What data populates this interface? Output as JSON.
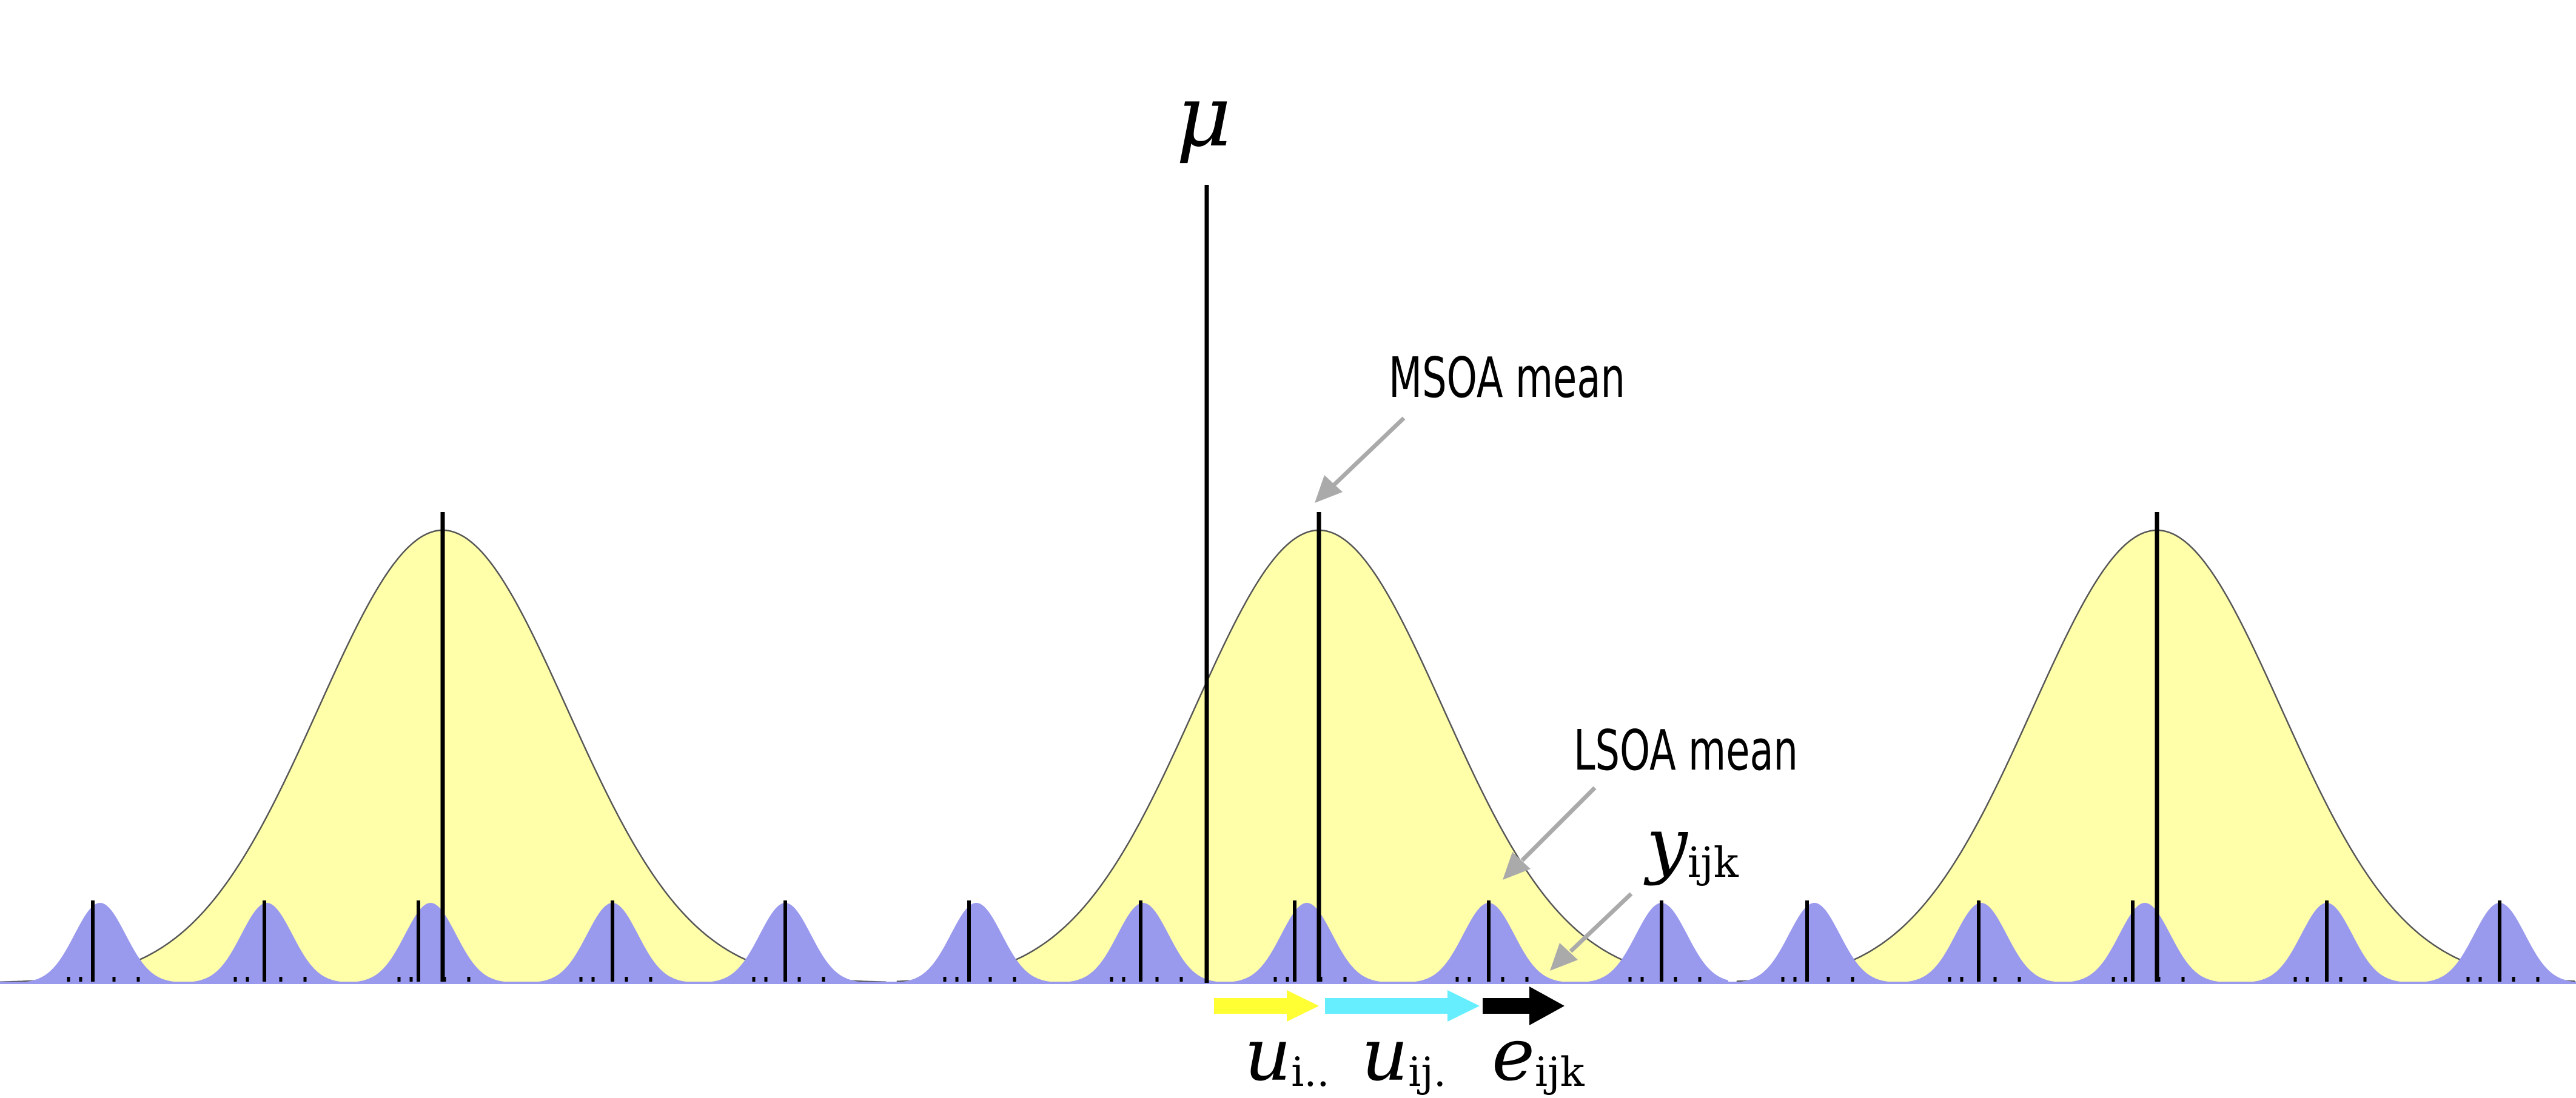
{
  "diagram": {
    "mu_label": "μ",
    "msoa_mean_label": "MSOA mean",
    "lsoa_mean_label": "LSOA mean",
    "y_symbol": "y",
    "y_subscript": "ijk",
    "components": [
      {
        "symbol": "u",
        "subscript": "i..",
        "arrow_color": "#ffff33"
      },
      {
        "symbol": "u",
        "subscript": "ij.",
        "arrow_color": "#66eeff"
      },
      {
        "symbol": "e",
        "subscript": "ijk",
        "arrow_color": "#000000"
      }
    ],
    "colors": {
      "msoa_fill": "#ffffaa",
      "lsoa_fill": "#9999ee",
      "mean_line": "#000000",
      "pointer_arrow": "#aaaaaa"
    },
    "msoa_groups": [
      {
        "name": "msoa-1",
        "lsoa_count": 5
      },
      {
        "name": "msoa-2",
        "lsoa_count": 5
      },
      {
        "name": "msoa-3",
        "lsoa_count": 5
      }
    ]
  }
}
